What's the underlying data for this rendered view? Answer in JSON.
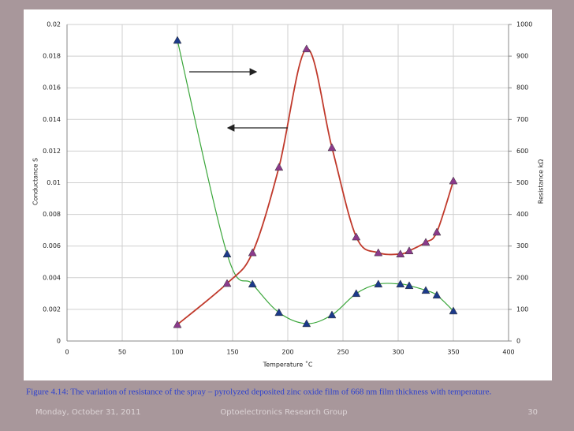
{
  "chart_data": {
    "type": "line",
    "x": [
      100,
      145,
      168,
      192,
      217,
      240,
      262,
      282,
      302,
      310,
      325,
      335,
      350
    ],
    "series": [
      {
        "name": "Conductance",
        "color": "#3aa63a",
        "marker_color": "#1c3a8a",
        "axis": "y",
        "values": [
          0.019,
          0.0055,
          0.0036,
          0.0018,
          0.0011,
          0.00165,
          0.003,
          0.0036,
          0.0036,
          0.0035,
          0.0032,
          0.0029,
          0.0019
        ]
      },
      {
        "name": "Resistance",
        "color": "#c0392b",
        "marker_color": "#8b3a8b",
        "axis": "y2",
        "values": [
          52,
          182,
          279,
          549,
          923,
          611,
          329,
          279,
          275,
          285,
          312,
          344,
          506
        ]
      }
    ],
    "xlabel": "Temperature ˚C",
    "ylabel": "Conductance  S",
    "y2label": "Resistance  kΩ",
    "xlim": [
      0,
      400
    ],
    "xticks": [
      0,
      50,
      100,
      150,
      200,
      250,
      300,
      350,
      400
    ],
    "ylim": [
      0,
      0.02
    ],
    "yticks": [
      0,
      0.002,
      0.004,
      0.006,
      0.008,
      0.01,
      0.012,
      0.014,
      0.016,
      0.018,
      0.02
    ],
    "y2lim": [
      0,
      1000
    ],
    "y2ticks": [
      0,
      100,
      200,
      300,
      400,
      500,
      600,
      700,
      800,
      900,
      1000
    ],
    "grid": true
  },
  "caption": "Figure 4.14: The variation of resistance of the spray – pyrolyzed deposited zinc oxide film of 668 nm film thickness with temperature.",
  "footer": {
    "date": "Monday, October 31, 2011",
    "group": "Optoelectronics Research Group",
    "page": "30"
  }
}
